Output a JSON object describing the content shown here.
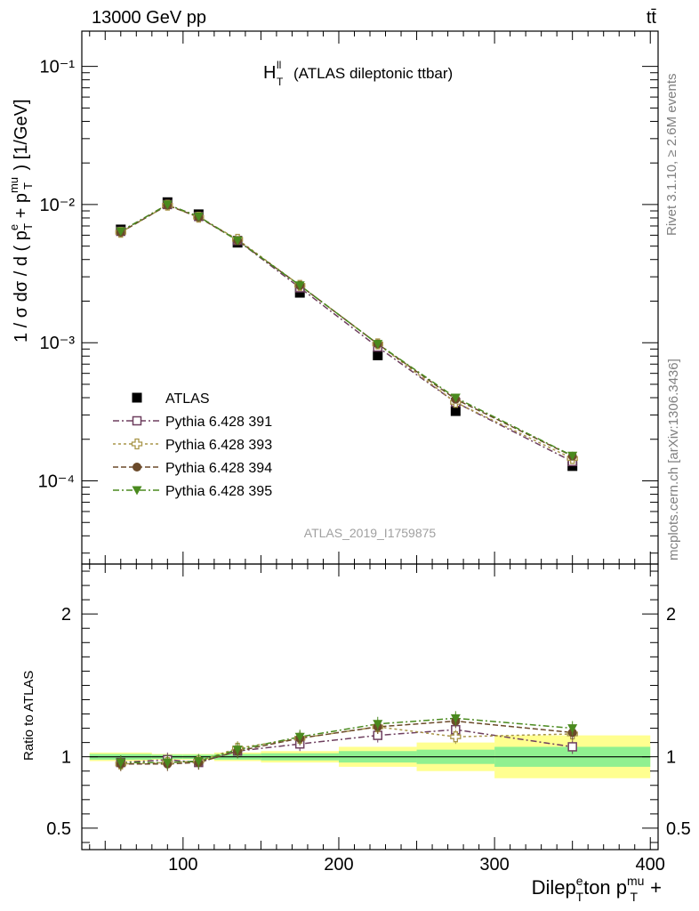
{
  "header": {
    "energy_label": "13000 GeV pp",
    "process_label": "tt̄"
  },
  "side_labels": {
    "rivet": "Rivet 3.1.10, ≥ 2.6M events",
    "mcplots": "mcplots.cern.ch [arXiv:1306.3436]"
  },
  "chart_data": {
    "type": "scatter",
    "title_main": "H",
    "title_sup": "ll",
    "title_sub": "T",
    "title_rest": "(ATLAS dileptonic ttbar)",
    "analysis_label": "ATLAS_2019_I1759875",
    "ylabel": "1 / σ dσ / d ( p + p ) [1/GeV]",
    "ylabel_ratio": "Ratio to ATLAS",
    "xlabel": "Dilepton p + p [GeV]",
    "xlim": [
      35,
      405
    ],
    "ylim_main": [
      2.5e-05,
      0.18
    ],
    "y_scale_main": "log",
    "ylim_ratio": [
      0.35,
      2.35
    ],
    "x_ticks": [
      100,
      200,
      300,
      400
    ],
    "y_ticks_main": [
      "10⁻¹",
      "10⁻²",
      "10⁻³",
      "10⁻⁴"
    ],
    "y_ticks_ratio": [
      "2",
      "1",
      "0.5"
    ],
    "bins": [
      [
        40,
        80
      ],
      [
        80,
        100
      ],
      [
        100,
        120
      ],
      [
        120,
        150
      ],
      [
        150,
        200
      ],
      [
        200,
        250
      ],
      [
        250,
        300
      ],
      [
        300,
        400
      ]
    ],
    "x": [
      60,
      90,
      110,
      135,
      175,
      225,
      275,
      350
    ],
    "data": {
      "name": "ATLAS",
      "values": [
        0.0066,
        0.0104,
        0.0085,
        0.0053,
        0.0023,
        0.00081,
        0.00032,
        0.000128
      ],
      "ratio_band_inner": [
        0.02,
        0.015,
        0.015,
        0.02,
        0.025,
        0.04,
        0.05,
        0.07
      ],
      "ratio_band_outer": [
        0.03,
        0.02,
        0.02,
        0.03,
        0.04,
        0.07,
        0.1,
        0.15
      ]
    },
    "series": [
      {
        "name": "Pythia 6.428 391",
        "color": "#6e3f5f",
        "marker": "open-square",
        "dash": "7 3 2 3",
        "values": [
          0.0064,
          0.01,
          0.0082,
          0.0055,
          0.0025,
          0.00093,
          0.00037,
          0.000138
        ],
        "ratios": [
          0.96,
          0.98,
          0.96,
          1.04,
          1.09,
          1.15,
          1.19,
          1.07
        ]
      },
      {
        "name": "Pythia 6.428 393",
        "color": "#a89548",
        "marker": "open-cross",
        "dash": "3 3",
        "values": [
          0.0063,
          0.0099,
          0.0081,
          0.0056,
          0.0026,
          0.00098,
          0.00037,
          0.000145
        ],
        "ratios": [
          0.95,
          0.96,
          0.97,
          1.06,
          1.13,
          1.21,
          1.14,
          1.16
        ]
      },
      {
        "name": "Pythia 6.428 394",
        "color": "#6b4a2a",
        "marker": "circle",
        "dash": "6 3",
        "values": [
          0.0063,
          0.0099,
          0.0081,
          0.0055,
          0.0026,
          0.00098,
          0.00039,
          0.000151
        ],
        "ratios": [
          0.95,
          0.95,
          0.96,
          1.04,
          1.13,
          1.21,
          1.25,
          1.17
        ]
      },
      {
        "name": "Pythia 6.428 395",
        "color": "#4a8a1e",
        "marker": "down-triangle",
        "dash": "7 3 2 3",
        "values": [
          0.0064,
          0.01,
          0.0082,
          0.0055,
          0.0026,
          0.00098,
          0.0004,
          0.000152
        ],
        "ratios": [
          0.96,
          0.96,
          0.97,
          1.05,
          1.14,
          1.23,
          1.27,
          1.2
        ]
      }
    ],
    "colors": {
      "band_inner": "#90f090",
      "band_outer": "#ffff90",
      "data": "#000000"
    },
    "legend_position": "lower-left"
  }
}
